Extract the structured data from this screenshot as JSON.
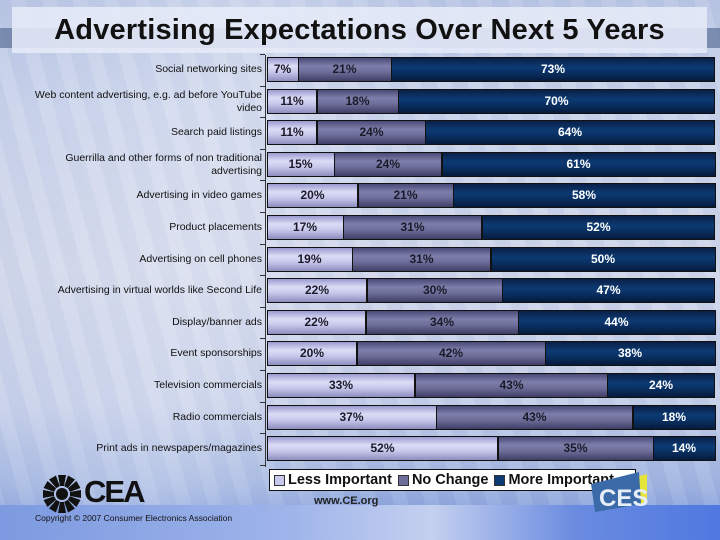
{
  "title": "Advertising Expectations Over Next 5 Years",
  "chart_data": {
    "type": "bar",
    "orientation": "horizontal",
    "stacked": "100%",
    "title": "Advertising Expectations Over Next 5 Years",
    "xlabel": "",
    "ylabel": "",
    "xlim": [
      0,
      100
    ],
    "grid": false,
    "legend_position": "bottom",
    "categories": [
      "Social networking sites",
      "Web content advertising, e.g. ad before YouTube video",
      "Search paid listings",
      "Guerrilla and other forms of non traditional advertising",
      "Advertising in video games",
      "Product placements",
      "Advertising on cell phones",
      "Advertising in virtual worlds like Second Life",
      "Display/banner ads",
      "Event sponsorships",
      "Television commercials",
      "Radio commercials",
      "Print ads in newspapers/magazines"
    ],
    "series": [
      {
        "name": "Less Important",
        "color": "#c8c8ec",
        "values": [
          7,
          11,
          11,
          15,
          20,
          17,
          19,
          22,
          22,
          20,
          33,
          37,
          52
        ]
      },
      {
        "name": "No Change",
        "color": "#6e6e9a",
        "values": [
          21,
          18,
          24,
          24,
          21,
          31,
          31,
          30,
          34,
          42,
          43,
          43,
          35
        ]
      },
      {
        "name": "More Important",
        "color": "#0c3a72",
        "values": [
          73,
          70,
          64,
          61,
          58,
          52,
          50,
          47,
          44,
          38,
          24,
          18,
          14
        ]
      }
    ],
    "value_labels_format": "{v}%"
  },
  "legend": {
    "items": [
      "Less Important",
      "No Change",
      "More Important"
    ]
  },
  "footer": {
    "logo_text": "CEA",
    "copyright": "Copyright © 2007 Consumer Electronics Association",
    "website": "www.CE.org",
    "ces_logo_text": "CES"
  }
}
